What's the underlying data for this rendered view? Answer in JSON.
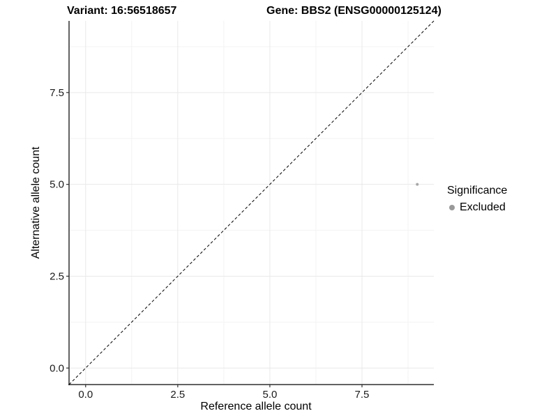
{
  "chart_data": {
    "type": "scatter",
    "title_left": "Variant: 16:56518657",
    "title_right": "Gene: BBS2 (ENSG00000125124)",
    "xlabel": "Reference allele count",
    "ylabel": "Alternative allele count",
    "xlim": [
      -0.45,
      9.45
    ],
    "ylim": [
      -0.45,
      9.45
    ],
    "x_ticks": [
      0.0,
      2.5,
      5.0,
      7.5
    ],
    "y_ticks": [
      0.0,
      2.5,
      5.0,
      7.5
    ],
    "x_tick_labels": [
      "0.0",
      "2.5",
      "5.0",
      "7.5"
    ],
    "y_tick_labels": [
      "0.0",
      "2.5",
      "5.0",
      "7.5"
    ],
    "minor_breaks": [
      1.25,
      3.75,
      6.25,
      8.75
    ],
    "grid": true,
    "identity_line": {
      "style": "dashed",
      "from": [
        -0.45,
        -0.45
      ],
      "to": [
        9.45,
        9.45
      ],
      "color": "#000000"
    },
    "points": [
      {
        "x": 9,
        "y": 5,
        "series": "Excluded",
        "color": "#a8a8a8",
        "radius": 2
      }
    ],
    "legend": {
      "title": "Significance",
      "position": "right",
      "entries": [
        {
          "label": "Excluded",
          "color": "#999999"
        }
      ]
    },
    "colors": {
      "axis_line": "#2f2f2f",
      "major_grid": "#e9e9e9",
      "minor_grid": "#f3f3f3"
    }
  }
}
